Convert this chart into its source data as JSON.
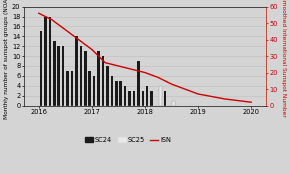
{
  "sc24_values": [
    15,
    18,
    18,
    13,
    12,
    12,
    7,
    7,
    14,
    12,
    11,
    7,
    6,
    11,
    10,
    8,
    6,
    5,
    5,
    4,
    3,
    3,
    9,
    3,
    4,
    3,
    0,
    3,
    3,
    0,
    0,
    0
  ],
  "sc25_values": [
    0,
    0,
    0,
    0,
    0,
    0,
    0,
    0,
    0,
    0,
    0,
    0,
    0,
    0,
    0,
    0,
    0,
    0,
    0,
    0,
    0,
    0,
    0,
    0,
    0,
    0,
    0,
    4,
    0,
    0,
    1,
    0
  ],
  "isn_x": [
    2016.0,
    2016.25,
    2016.5,
    2016.75,
    2017.0,
    2017.25,
    2017.5,
    2017.75,
    2018.0,
    2018.25,
    2018.5,
    2018.75,
    2019.0,
    2019.5,
    2020.0
  ],
  "isn_y": [
    56,
    52,
    46,
    40,
    34,
    26,
    24,
    22,
    20,
    17,
    13,
    10,
    7,
    4,
    2
  ],
  "bar_color_sc24": "#1a1a1a",
  "bar_color_sc25": "#e8e8e8",
  "line_color": "#cc0000",
  "background_color": "#d4d4d4",
  "ylim_left": [
    0,
    20
  ],
  "ylim_right": [
    0,
    60
  ],
  "yticks_left": [
    0,
    2,
    4,
    6,
    8,
    10,
    12,
    14,
    16,
    18,
    20
  ],
  "yticks_right": [
    0,
    10,
    20,
    30,
    40,
    50,
    60
  ],
  "xtick_labels": [
    "2016",
    "2017",
    "2018",
    "2019",
    "2020"
  ],
  "xtick_positions": [
    2016,
    2017,
    2018,
    2019,
    2020
  ],
  "xlim": [
    2015.72,
    2020.28
  ],
  "ylabel_left": "Monthly number of sunspot groups (NOAA)",
  "ylabel_right": "Smoothed International Sunspot Number",
  "legend_labels": [
    "SC24",
    "SC25",
    "ISN"
  ],
  "axis_fontsize": 4.2,
  "tick_fontsize": 4.8,
  "legend_fontsize": 4.8
}
